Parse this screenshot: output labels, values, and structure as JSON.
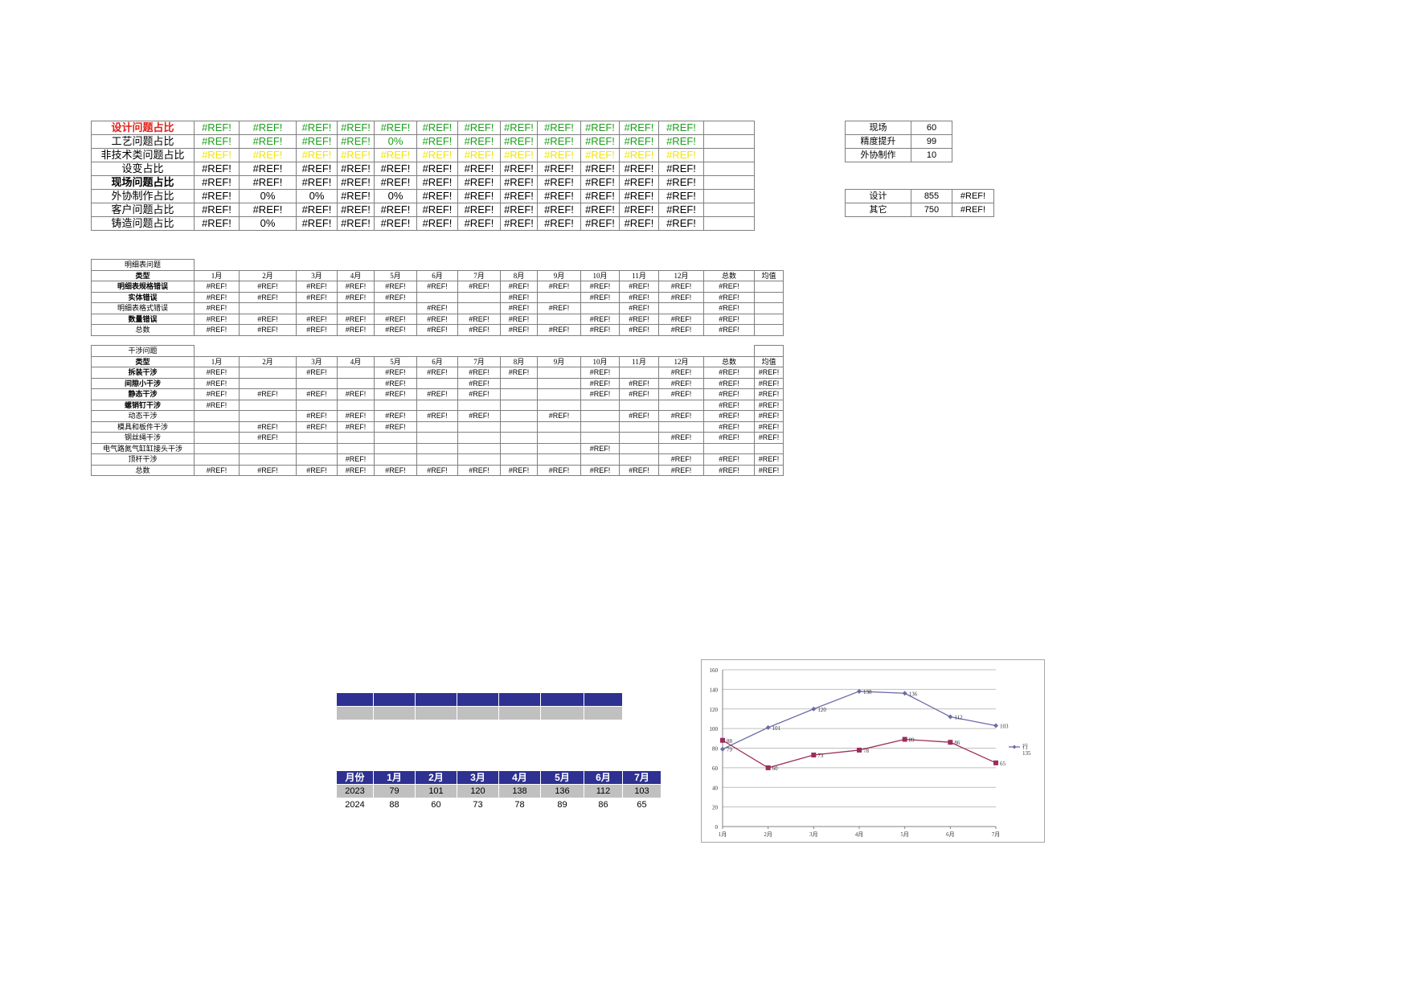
{
  "summary": {
    "rows": [
      {
        "label": "设计问题占比",
        "style": "red",
        "vals": [
          "#REF!",
          "#REF!",
          "#REF!",
          "#REF!",
          "#REF!",
          "#REF!",
          "#REF!",
          "#REF!",
          "#REF!",
          "#REF!",
          "#REF!",
          "#REF!"
        ],
        "valstyle": "green"
      },
      {
        "label": "工艺问题占比",
        "style": "normal",
        "vals": [
          "#REF!",
          "#REF!",
          "#REF!",
          "#REF!",
          "0%",
          "#REF!",
          "#REF!",
          "#REF!",
          "#REF!",
          "#REF!",
          "#REF!",
          "#REF!"
        ],
        "valstyle": "green"
      },
      {
        "label": "非技术类问题占比",
        "style": "normal",
        "vals": [
          "#REF!",
          "#REF!",
          "#REF!",
          "#REF!",
          "#REF!",
          "#REF!",
          "#REF!",
          "#REF!",
          "#REF!",
          "#REF!",
          "#REF!",
          "#REF!"
        ],
        "valstyle": "yellow"
      },
      {
        "label": "设变占比",
        "style": "normal",
        "vals": [
          "#REF!",
          "#REF!",
          "#REF!",
          "#REF!",
          "#REF!",
          "#REF!",
          "#REF!",
          "#REF!",
          "#REF!",
          "#REF!",
          "#REF!",
          "#REF!"
        ],
        "valstyle": "black"
      },
      {
        "label": "现场问题占比",
        "style": "bold",
        "vals": [
          "#REF!",
          "#REF!",
          "#REF!",
          "#REF!",
          "#REF!",
          "#REF!",
          "#REF!",
          "#REF!",
          "#REF!",
          "#REF!",
          "#REF!",
          "#REF!"
        ],
        "valstyle": "black"
      },
      {
        "label": "外协制作占比",
        "style": "normal",
        "vals": [
          "#REF!",
          "0%",
          "0%",
          "#REF!",
          "0%",
          "#REF!",
          "#REF!",
          "#REF!",
          "#REF!",
          "#REF!",
          "#REF!",
          "#REF!"
        ],
        "valstyle": "black"
      },
      {
        "label": "客户问题占比",
        "style": "normal",
        "vals": [
          "#REF!",
          "#REF!",
          "#REF!",
          "#REF!",
          "#REF!",
          "#REF!",
          "#REF!",
          "#REF!",
          "#REF!",
          "#REF!",
          "#REF!",
          "#REF!"
        ],
        "valstyle": "black"
      },
      {
        "label": "铸造问题占比",
        "style": "normal",
        "vals": [
          "#REF!",
          "0%",
          "#REF!",
          "#REF!",
          "#REF!",
          "#REF!",
          "#REF!",
          "#REF!",
          "#REF!",
          "#REF!",
          "#REF!",
          "#REF!"
        ],
        "valstyle": "black"
      }
    ]
  },
  "side1": [
    {
      "label": "现场",
      "value": "60"
    },
    {
      "label": "精度提升",
      "value": "99"
    },
    {
      "label": "外协制作",
      "value": "10"
    }
  ],
  "side2": [
    {
      "label": "设计",
      "value": "855",
      "ref": "#REF!"
    },
    {
      "label": "其它",
      "value": "750",
      "ref": "#REF!"
    }
  ],
  "detail1": {
    "title": "明细表问题",
    "type_label": "类型",
    "months": [
      "1月",
      "2月",
      "3月",
      "4月",
      "5月",
      "6月",
      "7月",
      "8月",
      "9月",
      "10月",
      "11月",
      "12月",
      "总数",
      "均值"
    ],
    "rows": [
      {
        "label": "明细表规格错误",
        "bold": true,
        "vals": [
          "#REF!",
          "#REF!",
          "#REF!",
          "#REF!",
          "#REF!",
          "#REF!",
          "#REF!",
          "#REF!",
          "#REF!",
          "#REF!",
          "#REF!",
          "#REF!",
          "#REF!",
          ""
        ]
      },
      {
        "label": "实体错误",
        "bold": true,
        "vals": [
          "#REF!",
          "#REF!",
          "#REF!",
          "#REF!",
          "#REF!",
          "",
          "",
          "#REF!",
          "",
          "#REF!",
          "#REF!",
          "#REF!",
          "#REF!",
          ""
        ]
      },
      {
        "label": "明细表格式错误",
        "bold": false,
        "vals": [
          "#REF!",
          "",
          "",
          "",
          "",
          "#REF!",
          "",
          "#REF!",
          "#REF!",
          "",
          "#REF!",
          "",
          "#REF!",
          ""
        ]
      },
      {
        "label": "数量错误",
        "bold": true,
        "vals": [
          "#REF!",
          "#REF!",
          "#REF!",
          "#REF!",
          "#REF!",
          "#REF!",
          "#REF!",
          "#REF!",
          "",
          "#REF!",
          "#REF!",
          "#REF!",
          "#REF!",
          ""
        ]
      },
      {
        "label": "总数",
        "bold": false,
        "vals": [
          "#REF!",
          "#REF!",
          "#REF!",
          "#REF!",
          "#REF!",
          "#REF!",
          "#REF!",
          "#REF!",
          "#REF!",
          "#REF!",
          "#REF!",
          "#REF!",
          "#REF!",
          ""
        ]
      }
    ]
  },
  "detail2": {
    "title": "干涉问题",
    "type_label": "类型",
    "months": [
      "1月",
      "2月",
      "3月",
      "4月",
      "5月",
      "6月",
      "7月",
      "8月",
      "9月",
      "10月",
      "11月",
      "12月",
      "总数",
      "均值"
    ],
    "rows": [
      {
        "label": "拆装干涉",
        "bold": true,
        "vals": [
          "#REF!",
          "",
          "#REF!",
          "",
          "#REF!",
          "#REF!",
          "#REF!",
          "#REF!",
          "",
          "#REF!",
          "",
          "#REF!",
          "#REF!",
          "#REF!"
        ]
      },
      {
        "label": "间隙小干涉",
        "bold": true,
        "vals": [
          "#REF!",
          "",
          "",
          "",
          "#REF!",
          "",
          "#REF!",
          "",
          "",
          "#REF!",
          "#REF!",
          "#REF!",
          "#REF!",
          "#REF!"
        ]
      },
      {
        "label": "静态干涉",
        "bold": true,
        "vals": [
          "#REF!",
          "#REF!",
          "#REF!",
          "#REF!",
          "#REF!",
          "#REF!",
          "#REF!",
          "",
          "",
          "#REF!",
          "#REF!",
          "#REF!",
          "#REF!",
          "#REF!"
        ]
      },
      {
        "label": "螺销钉干涉",
        "bold": true,
        "vals": [
          "#REF!",
          "",
          "",
          "",
          "",
          "",
          "",
          "",
          "",
          "",
          "",
          "",
          "#REF!",
          "#REF!"
        ]
      },
      {
        "label": "动态干涉",
        "bold": false,
        "vals": [
          "",
          "",
          "#REF!",
          "#REF!",
          "#REF!",
          "#REF!",
          "#REF!",
          "",
          "#REF!",
          "",
          "#REF!",
          "#REF!",
          "#REF!",
          "#REF!"
        ]
      },
      {
        "label": "模具和板件干涉",
        "bold": false,
        "vals": [
          "",
          "#REF!",
          "#REF!",
          "#REF!",
          "#REF!",
          "",
          "",
          "",
          "",
          "",
          "",
          "",
          "#REF!",
          "#REF!"
        ]
      },
      {
        "label": "钢丝绳干涉",
        "bold": false,
        "vals": [
          "",
          "#REF!",
          "",
          "",
          "",
          "",
          "",
          "",
          "",
          "",
          "",
          "#REF!",
          "#REF!",
          "#REF!"
        ]
      },
      {
        "label": "电气路氮气缸缸接头干涉",
        "bold": false,
        "vals": [
          "",
          "",
          "",
          "",
          "",
          "",
          "",
          "",
          "",
          "#REF!",
          "",
          "",
          "",
          ""
        ]
      },
      {
        "label": "顶杆干涉",
        "bold": false,
        "vals": [
          "",
          "",
          "",
          "#REF!",
          "",
          "",
          "",
          "",
          "",
          "",
          "",
          "#REF!",
          "#REF!",
          "#REF!"
        ]
      },
      {
        "label": "总数",
        "bold": false,
        "vals": [
          "#REF!",
          "#REF!",
          "#REF!",
          "#REF!",
          "#REF!",
          "#REF!",
          "#REF!",
          "#REF!",
          "#REF!",
          "#REF!",
          "#REF!",
          "#REF!",
          "#REF!",
          "#REF!"
        ]
      }
    ]
  },
  "yearly": {
    "header": [
      "月份",
      "1月",
      "2月",
      "3月",
      "4月",
      "5月",
      "6月",
      "7月"
    ],
    "rows": [
      {
        "year": "2023",
        "vals": [
          "79",
          "101",
          "120",
          "138",
          "136",
          "112",
          "103"
        ]
      },
      {
        "year": "2024",
        "vals": [
          "88",
          "60",
          "73",
          "78",
          "89",
          "86",
          "65"
        ]
      }
    ]
  },
  "chart_data": {
    "type": "line",
    "categories": [
      "1月",
      "2月",
      "3月",
      "4月",
      "5月",
      "6月",
      "7月"
    ],
    "ylim": [
      0,
      160
    ],
    "yticks": [
      0,
      20,
      40,
      60,
      80,
      100,
      120,
      140,
      160
    ],
    "grid": true,
    "legend_position": "right",
    "legend_label": "行",
    "legend_label2": "135",
    "series": [
      {
        "values": [
          79,
          101,
          120,
          138,
          136,
          112,
          103
        ],
        "color": "#6b6ba8",
        "marker": "diamond"
      },
      {
        "values": [
          88,
          60,
          73,
          78,
          89,
          86,
          65
        ],
        "color": "#9b2d5c",
        "marker": "square"
      }
    ]
  }
}
